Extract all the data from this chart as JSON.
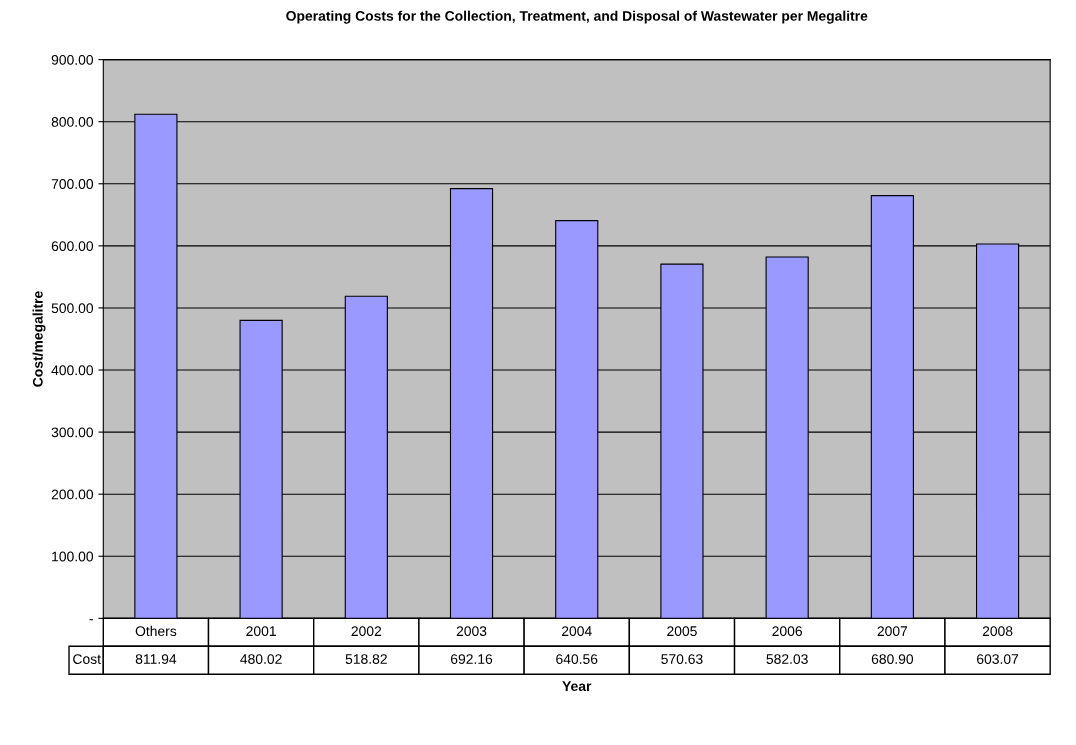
{
  "chart_data": {
    "type": "bar",
    "title": "Operating Costs for the Collection, Treatment, and Disposal of Wastewater per Megalitre",
    "xlabel": "Year",
    "ylabel": "Cost/megalitre",
    "categories": [
      "Others",
      "2001",
      "2002",
      "2003",
      "2004",
      "2005",
      "2006",
      "2007",
      "2008"
    ],
    "series": [
      {
        "name": "Cost",
        "color": "#9999ff",
        "values": [
          811.94,
          480.02,
          518.82,
          692.16,
          640.56,
          570.63,
          582.03,
          680.9,
          603.07
        ],
        "value_labels": [
          "811.94",
          "480.02",
          "518.82",
          "692.16",
          "640.56",
          "570.63",
          "582.03",
          "680.90",
          "603.07"
        ]
      }
    ],
    "ylim": [
      0,
      900
    ],
    "yticks": [
      {
        "value": 0,
        "label": "-"
      },
      {
        "value": 100,
        "label": "100.00"
      },
      {
        "value": 200,
        "label": "200.00"
      },
      {
        "value": 300,
        "label": "300.00"
      },
      {
        "value": 400,
        "label": "400.00"
      },
      {
        "value": 500,
        "label": "500.00"
      },
      {
        "value": 600,
        "label": "600.00"
      },
      {
        "value": 700,
        "label": "700.00"
      },
      {
        "value": 800,
        "label": "800.00"
      },
      {
        "value": 900,
        "label": "900.00"
      }
    ],
    "grid": "y",
    "legend": false
  }
}
